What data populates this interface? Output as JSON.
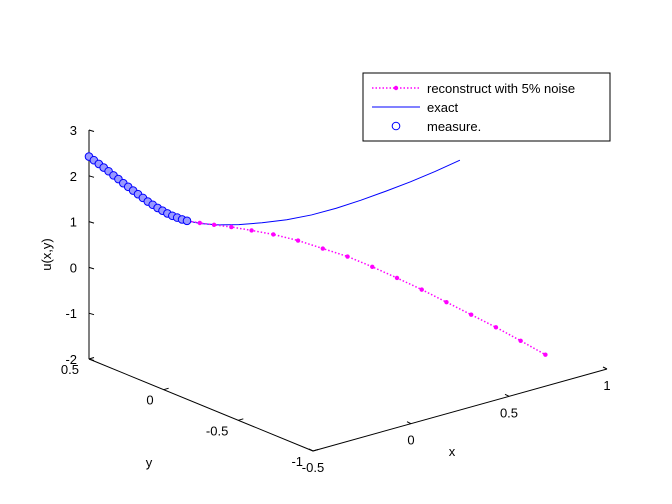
{
  "chart_data": {
    "type": "line",
    "title": "",
    "xlabel": "x",
    "ylabel": "y",
    "zlabel": "u(x,y)",
    "xlim": [
      -0.5,
      1
    ],
    "ylim": [
      -1,
      0.5
    ],
    "zlim": [
      -2,
      3
    ],
    "x_ticks": [
      -0.5,
      0,
      0.5,
      1
    ],
    "x_tick_labels": [
      "-0.5",
      "0",
      "0.5",
      "1"
    ],
    "y_ticks": [
      -1,
      -0.5,
      0,
      0.5
    ],
    "y_tick_labels": [
      "-1",
      "-0.5",
      "0",
      "0.5"
    ],
    "z_ticks": [
      -2,
      -1,
      0,
      1,
      2,
      3
    ],
    "z_tick_labels": [
      "-2",
      "-1",
      "0",
      "1",
      "2",
      "3"
    ],
    "grid": false,
    "legend_position": "top-right",
    "colors": {
      "reconstruct": "#ff00ff",
      "exact": "#0000ff",
      "measure": "#0000ff",
      "measure_fill": "#9999ff"
    },
    "series": [
      {
        "name": "reconstruct with 5% noise",
        "style": "dotted-line-with-points",
        "x": [
          -0.5,
          -0.45,
          -0.4,
          -0.35,
          -0.3,
          -0.25,
          -0.2,
          -0.15,
          -0.1,
          -0.05,
          0,
          0.05,
          0.1,
          0.15,
          0.2,
          0.25,
          0.3,
          0.35,
          0.4,
          0.45,
          0.5,
          0.55,
          0.6,
          0.65,
          0.7,
          0.75,
          0.8
        ],
        "y": [
          0.5,
          0.5,
          0.5,
          0.5,
          0.5,
          0.5,
          0.5,
          0.5,
          0.5,
          0.5,
          0.5,
          0.48,
          0.45,
          0.4,
          0.33,
          0.25,
          0.15,
          0.05,
          -0.05,
          -0.15,
          -0.25,
          -0.35,
          -0.45,
          -0.55,
          -0.65,
          -0.75,
          -0.85
        ],
        "z": [
          2.42,
          2.2,
          1.98,
          1.75,
          1.52,
          1.3,
          1.08,
          0.88,
          0.7,
          0.55,
          0.42,
          0.34,
          0.28,
          0.24,
          0.2,
          0.16,
          0.1,
          0.0,
          -0.1,
          -0.25,
          -0.42,
          -0.6,
          -0.8,
          -1.0,
          -1.2,
          -1.42,
          -1.65
        ]
      },
      {
        "name": "exact",
        "style": "solid-line",
        "x": [
          -0.5,
          -0.4,
          -0.3,
          -0.2,
          -0.1,
          0,
          0.05,
          0.1,
          0.15,
          0.2,
          0.25,
          0.3,
          0.35,
          0.4,
          0.45,
          0.5,
          0.55,
          0.6
        ],
        "y": [
          0.5,
          0.5,
          0.5,
          0.5,
          0.5,
          0.5,
          0.47,
          0.42,
          0.35,
          0.26,
          0.16,
          0.06,
          -0.04,
          -0.14,
          -0.24,
          -0.34,
          -0.44,
          -0.54
        ],
        "z": [
          2.42,
          1.98,
          1.52,
          1.08,
          0.7,
          0.42,
          0.34,
          0.32,
          0.36,
          0.46,
          0.6,
          0.78,
          1.0,
          1.25,
          1.52,
          1.8,
          2.1,
          2.42
        ]
      },
      {
        "name": "measure.",
        "style": "circle-markers",
        "x": [
          -0.5,
          -0.475,
          -0.45,
          -0.425,
          -0.4,
          -0.375,
          -0.35,
          -0.325,
          -0.3,
          -0.275,
          -0.25,
          -0.225,
          -0.2,
          -0.175,
          -0.15,
          -0.125,
          -0.1,
          -0.075,
          -0.05,
          -0.025,
          0
        ],
        "y": [
          0.5,
          0.5,
          0.5,
          0.5,
          0.5,
          0.5,
          0.5,
          0.5,
          0.5,
          0.5,
          0.5,
          0.5,
          0.5,
          0.5,
          0.5,
          0.5,
          0.5,
          0.5,
          0.5,
          0.5,
          0.5
        ],
        "z": [
          2.42,
          2.31,
          2.2,
          2.09,
          1.98,
          1.86,
          1.75,
          1.63,
          1.52,
          1.41,
          1.3,
          1.19,
          1.08,
          0.98,
          0.88,
          0.79,
          0.7,
          0.62,
          0.55,
          0.48,
          0.42
        ]
      }
    ],
    "legend": [
      {
        "label": "reconstruct with 5% noise",
        "symbol": "dotted-line-with-points"
      },
      {
        "label": "exact",
        "symbol": "solid-line"
      },
      {
        "label": "measure.",
        "symbol": "circle-marker"
      }
    ]
  }
}
